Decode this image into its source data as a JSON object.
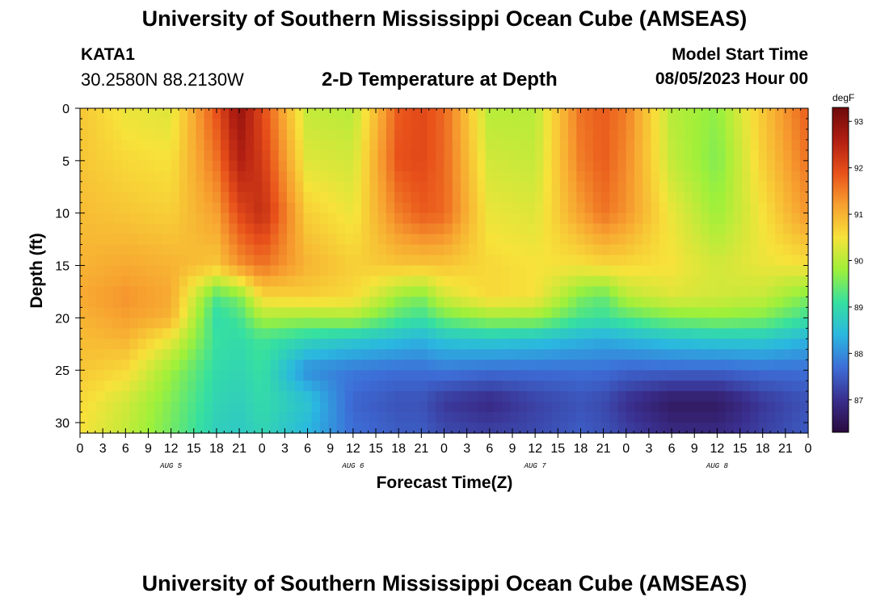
{
  "header": {
    "title": "University of Southern Mississippi Ocean Cube (AMSEAS)",
    "station_id": "KATA1",
    "station_location": "30.2580N  88.2130W",
    "plot_title": "2-D Temperature at Depth",
    "model_start_label": "Model Start Time",
    "model_start_value": "08/05/2023 Hour 00"
  },
  "footer": {
    "title": "University of Southern Mississippi Ocean Cube (AMSEAS)"
  },
  "colors": {
    "background": "#ffffff",
    "colormap": [
      "#2a0a3e",
      "#3a2f8e",
      "#3d6ed8",
      "#2ab7e0",
      "#36e0a0",
      "#9ef03a",
      "#f7e23a",
      "#f7a030",
      "#e8501a",
      "#b01e12",
      "#6e0a0a"
    ]
  },
  "chart_data": {
    "type": "heatmap",
    "title": "2-D Temperature at Depth",
    "xlabel": "Forecast Time(Z)",
    "ylabel": "Depth (ft)",
    "x_range_hours": [
      0,
      96
    ],
    "y_range_ft": [
      0,
      31
    ],
    "x_ticks": [
      "0",
      "3",
      "6",
      "9",
      "12",
      "15",
      "18",
      "21",
      "0",
      "3",
      "6",
      "9",
      "12",
      "15",
      "18",
      "21",
      "0",
      "3",
      "6",
      "9",
      "12",
      "15",
      "18",
      "21",
      "0",
      "3",
      "6",
      "9",
      "12",
      "15",
      "18",
      "21",
      "0"
    ],
    "day_labels": [
      "AUG 5",
      "AUG 6",
      "AUG 7",
      "AUG 8"
    ],
    "y_ticks": [
      "0",
      "5",
      "10",
      "15",
      "20",
      "25",
      "30"
    ],
    "colorbar": {
      "unit": "degF",
      "range": [
        86.3,
        93.3
      ],
      "ticks": [
        "93",
        "92",
        "91",
        "90",
        "89",
        "88",
        "87"
      ]
    },
    "hour_samples": [
      0,
      6,
      12,
      18,
      21,
      24,
      30,
      36,
      42,
      45,
      48,
      54,
      60,
      66,
      69,
      72,
      78,
      84,
      90,
      96
    ],
    "depth_samples": [
      0,
      5,
      10,
      15,
      18,
      20,
      22,
      25,
      28,
      31
    ],
    "values_degF": [
      [
        90.8,
        90.4,
        90.3,
        91.9,
        92.9,
        92.0,
        90.1,
        90.0,
        91.8,
        92.0,
        91.7,
        90.0,
        90.0,
        91.6,
        91.8,
        91.5,
        90.0,
        89.7,
        90.8,
        91.8
      ],
      [
        90.8,
        90.6,
        90.5,
        91.6,
        92.6,
        92.2,
        90.3,
        90.2,
        91.9,
        92.0,
        91.7,
        90.2,
        90.1,
        91.5,
        91.8,
        91.4,
        90.1,
        89.6,
        90.7,
        91.6
      ],
      [
        90.9,
        90.8,
        90.7,
        91.2,
        92.0,
        92.4,
        90.7,
        90.4,
        91.5,
        91.8,
        91.7,
        90.4,
        90.3,
        91.2,
        91.6,
        91.3,
        90.4,
        89.8,
        90.5,
        91.3
      ],
      [
        91.0,
        91.1,
        91.0,
        90.8,
        91.3,
        91.6,
        91.0,
        90.7,
        90.8,
        90.8,
        90.8,
        90.6,
        90.5,
        90.5,
        90.6,
        90.6,
        90.5,
        90.2,
        90.4,
        90.5
      ],
      [
        91.1,
        91.3,
        91.1,
        89.3,
        89.6,
        90.6,
        90.7,
        90.6,
        89.8,
        89.6,
        90.2,
        90.6,
        90.5,
        89.6,
        89.4,
        90.0,
        90.3,
        90.2,
        90.1,
        89.6
      ],
      [
        91.0,
        91.2,
        91.0,
        89.0,
        89.2,
        89.9,
        89.8,
        89.9,
        89.3,
        89.1,
        89.5,
        89.8,
        89.8,
        89.2,
        89.1,
        89.3,
        89.6,
        89.7,
        89.6,
        89.1
      ],
      [
        90.9,
        91.0,
        90.4,
        89.1,
        89.0,
        89.2,
        88.9,
        88.7,
        88.5,
        88.4,
        88.6,
        88.7,
        88.6,
        88.4,
        88.3,
        88.4,
        88.6,
        88.7,
        88.7,
        88.4
      ],
      [
        90.8,
        90.6,
        89.8,
        89.0,
        88.9,
        89.1,
        88.0,
        87.8,
        87.7,
        87.7,
        87.8,
        87.7,
        87.7,
        87.7,
        87.7,
        87.6,
        87.6,
        87.6,
        87.7,
        87.7
      ],
      [
        90.6,
        90.2,
        89.6,
        88.9,
        88.8,
        89.0,
        88.6,
        87.6,
        87.4,
        87.4,
        87.1,
        86.9,
        87.2,
        87.4,
        87.3,
        87.0,
        86.6,
        86.6,
        87.1,
        87.4
      ],
      [
        90.5,
        90.1,
        89.5,
        88.8,
        88.7,
        88.9,
        88.4,
        87.7,
        87.5,
        87.5,
        87.3,
        87.2,
        87.3,
        87.5,
        87.4,
        87.2,
        86.9,
        86.9,
        87.2,
        87.5
      ]
    ]
  }
}
